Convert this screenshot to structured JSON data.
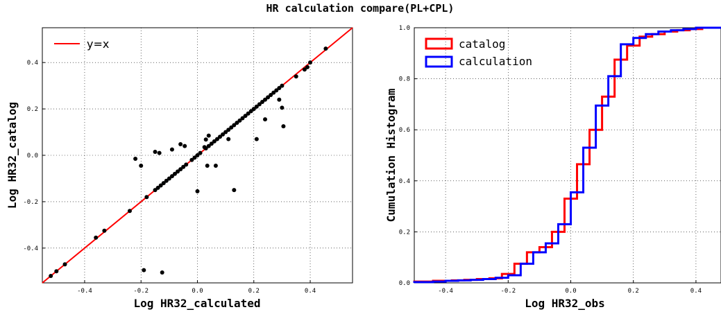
{
  "suptitle": "HR calculation compare(PL+CPL)",
  "chart_data": [
    {
      "type": "scatter",
      "xlabel": "Log HR32_calculated",
      "ylabel": "Log HR32_catalog",
      "xlim": [
        -0.55,
        0.55
      ],
      "ylim": [
        -0.55,
        0.55
      ],
      "xticks": [
        "-0.4",
        "-0.2",
        "0.0",
        "0.2",
        "0.4"
      ],
      "yticks": [
        "-0.4",
        "-0.2",
        "0.0",
        "0.2",
        "0.4"
      ],
      "grid": true,
      "legend_placement": "upper-left",
      "reference_line": {
        "label": "y=x",
        "color": "#ff0000"
      },
      "point_color": "#000000",
      "points": [
        [
          -0.52,
          -0.52
        ],
        [
          -0.5,
          -0.5
        ],
        [
          -0.47,
          -0.47
        ],
        [
          -0.36,
          -0.355
        ],
        [
          -0.33,
          -0.325
        ],
        [
          -0.24,
          -0.24
        ],
        [
          -0.22,
          -0.015
        ],
        [
          -0.2,
          -0.045
        ],
        [
          -0.18,
          -0.18
        ],
        [
          -0.15,
          -0.15
        ],
        [
          -0.14,
          -0.14
        ],
        [
          -0.13,
          -0.13
        ],
        [
          -0.12,
          -0.12
        ],
        [
          -0.11,
          -0.11
        ],
        [
          -0.1,
          -0.1
        ],
        [
          -0.09,
          -0.09
        ],
        [
          -0.08,
          -0.08
        ],
        [
          -0.07,
          -0.07
        ],
        [
          -0.06,
          -0.06
        ],
        [
          -0.05,
          -0.05
        ],
        [
          -0.04,
          -0.04
        ],
        [
          -0.15,
          0.015
        ],
        [
          -0.135,
          0.01
        ],
        [
          -0.09,
          0.025
        ],
        [
          -0.06,
          0.048
        ],
        [
          -0.045,
          0.04
        ],
        [
          -0.02,
          -0.02
        ],
        [
          -0.01,
          -0.01
        ],
        [
          0.0,
          0.0
        ],
        [
          0.01,
          0.01
        ],
        [
          0.0,
          -0.155
        ],
        [
          0.025,
          0.035
        ],
        [
          0.03,
          0.068
        ],
        [
          0.03,
          0.03
        ],
        [
          0.04,
          0.04
        ],
        [
          0.05,
          0.05
        ],
        [
          0.06,
          0.06
        ],
        [
          0.07,
          0.07
        ],
        [
          0.08,
          0.08
        ],
        [
          0.09,
          0.09
        ],
        [
          0.1,
          0.1
        ],
        [
          0.11,
          0.11
        ],
        [
          0.12,
          0.12
        ],
        [
          0.13,
          0.13
        ],
        [
          0.14,
          0.14
        ],
        [
          0.15,
          0.15
        ],
        [
          0.16,
          0.16
        ],
        [
          0.17,
          0.17
        ],
        [
          0.18,
          0.18
        ],
        [
          0.19,
          0.19
        ],
        [
          0.2,
          0.2
        ],
        [
          0.21,
          0.21
        ],
        [
          0.22,
          0.22
        ],
        [
          0.23,
          0.23
        ],
        [
          0.24,
          0.24
        ],
        [
          0.25,
          0.25
        ],
        [
          0.26,
          0.26
        ],
        [
          0.27,
          0.27
        ],
        [
          0.28,
          0.28
        ],
        [
          0.29,
          0.29
        ],
        [
          0.3,
          0.3
        ],
        [
          0.035,
          -0.045
        ],
        [
          0.065,
          -0.045
        ],
        [
          0.04,
          0.085
        ],
        [
          0.11,
          0.07
        ],
        [
          0.13,
          -0.15
        ],
        [
          0.21,
          0.07
        ],
        [
          0.24,
          0.155
        ],
        [
          0.29,
          0.24
        ],
        [
          0.3,
          0.205
        ],
        [
          0.305,
          0.125
        ],
        [
          -0.19,
          -0.495
        ],
        [
          -0.125,
          -0.505
        ],
        [
          0.35,
          0.34
        ],
        [
          0.38,
          0.37
        ],
        [
          0.39,
          0.38
        ],
        [
          0.4,
          0.4
        ],
        [
          0.455,
          0.46
        ]
      ]
    },
    {
      "type": "line",
      "subtype": "cumulative-step-histogram",
      "xlabel": "Log HR32_obs",
      "ylabel": "Cumulation Histogram",
      "xlim": [
        -0.5,
        0.48
      ],
      "ylim": [
        0.0,
        1.0
      ],
      "xticks": [
        "-0.4",
        "-0.2",
        "0.0",
        "0.2",
        "0.4"
      ],
      "yticks": [
        "0.0",
        "0.2",
        "0.4",
        "0.6",
        "0.8",
        "1.0"
      ],
      "grid": true,
      "legend_placement": "upper-left",
      "series": [
        {
          "name": "catalog",
          "color": "#ff0000",
          "edges": [
            -0.5,
            -0.44,
            -0.38,
            -0.34,
            -0.3,
            -0.26,
            -0.22,
            -0.18,
            -0.14,
            -0.1,
            -0.06,
            -0.02,
            0.02,
            0.06,
            0.1,
            0.14,
            0.18,
            0.22,
            0.26,
            0.3,
            0.34,
            0.38,
            0.42,
            0.48
          ],
          "cumulative": [
            0.005,
            0.008,
            0.01,
            0.012,
            0.015,
            0.018,
            0.035,
            0.075,
            0.12,
            0.14,
            0.2,
            0.33,
            0.465,
            0.6,
            0.73,
            0.875,
            0.93,
            0.965,
            0.975,
            0.985,
            0.99,
            0.995,
            1.0
          ]
        },
        {
          "name": "calculation",
          "color": "#0000ff",
          "edges": [
            -0.5,
            -0.44,
            -0.4,
            -0.36,
            -0.32,
            -0.28,
            -0.24,
            -0.2,
            -0.16,
            -0.12,
            -0.08,
            -0.04,
            0.0,
            0.04,
            0.08,
            0.12,
            0.16,
            0.2,
            0.24,
            0.28,
            0.32,
            0.36,
            0.4,
            0.48
          ],
          "cumulative": [
            0.003,
            0.005,
            0.008,
            0.01,
            0.012,
            0.015,
            0.02,
            0.03,
            0.075,
            0.12,
            0.155,
            0.23,
            0.355,
            0.53,
            0.695,
            0.81,
            0.935,
            0.96,
            0.975,
            0.985,
            0.99,
            0.995,
            1.0
          ]
        }
      ]
    }
  ]
}
